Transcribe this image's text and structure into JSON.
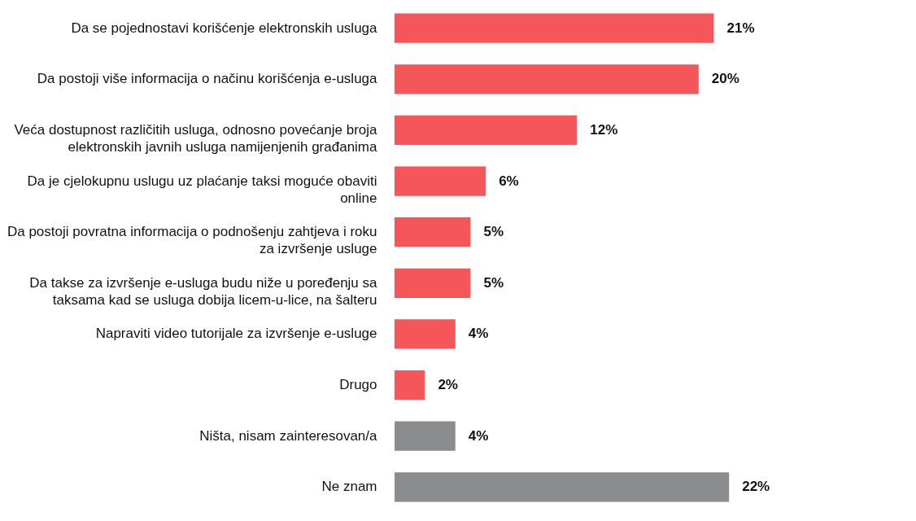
{
  "chart_data": {
    "type": "bar",
    "orientation": "horizontal",
    "categories": [
      "Da se pojednostavi korišćenje elektronskih usluga",
      "Da postoji više informacija o načinu korišćenja e-usluga",
      "Veća dostupnost različitih usluga, odnosno povećanje broja elektronskih javnih usluga namijenjenih građanima",
      "Da je cjelokupnu uslugu uz plaćanje taksi moguće obaviti online",
      "Da postoji povratna informacija o podnošenju zahtjeva i roku za izvršenje usluge",
      "Da takse za izvršenje e-usluga budu niže u poređenju sa taksama kad se usluga dobija licem-u-lice, na šalteru",
      "Napraviti video tutorijale za izvršenje e-usluge",
      "Drugo",
      "Ništa, nisam zainteresovan/a",
      "Ne znam"
    ],
    "values": [
      21,
      20,
      12,
      6,
      5,
      5,
      4,
      2,
      4,
      22
    ],
    "value_labels": [
      "21%",
      "20%",
      "12%",
      "6%",
      "5%",
      "5%",
      "4%",
      "2%",
      "4%",
      "22%"
    ],
    "colors": [
      "#f4565a",
      "#f4565a",
      "#f4565a",
      "#f4565a",
      "#f4565a",
      "#f4565a",
      "#f4565a",
      "#f4565a",
      "#8a8c8e",
      "#8a8c8e"
    ]
  }
}
